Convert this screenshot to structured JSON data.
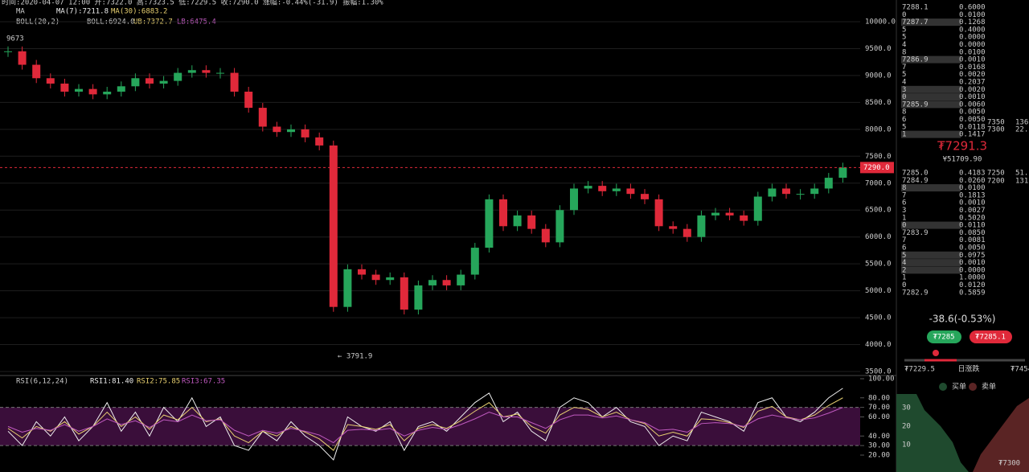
{
  "header": {
    "ohlc": "时间:2020-04-07 12:00  开:7322.0  高:7323.5  低:7229.5  收:7290.0  涨幅:-0.44%(-31.9)  振幅:1.30%",
    "ma": [
      "MA",
      "MA(7):7211.8",
      "MA(30):6883.2"
    ],
    "boll": [
      "BOLL(20,2)",
      "BOLL:6924.0",
      "UB:7372.7",
      "LB:6475.4"
    ]
  },
  "chart_data": [
    {
      "type": "candlestick",
      "closes": [
        9450,
        9200,
        8950,
        8850,
        8700,
        8750,
        8650,
        8700,
        8800,
        8950,
        8850,
        8900,
        9050,
        9100,
        9050,
        9050,
        8700,
        8400,
        8050,
        7950,
        8000,
        7850,
        7700,
        4700,
        5400,
        5300,
        5200,
        5250,
        4650,
        5100,
        5200,
        5100,
        5300,
        5800,
        6700,
        6200,
        6400,
        6150,
        5900,
        6500,
        6900,
        6950,
        6850,
        6900,
        6800,
        6700,
        6200,
        6150,
        6000,
        6400,
        6450,
        6400,
        6300,
        6750,
        6900,
        6800,
        6800,
        6900,
        7100,
        7290
      ],
      "ylim": [
        3500,
        10000
      ],
      "yticks": [
        {
          "value": 10000,
          "label": "10000.0"
        },
        {
          "value": 9500,
          "label": "9500.0"
        },
        {
          "value": 9000,
          "label": "9000.0"
        },
        {
          "value": 8500,
          "label": "8500.0"
        },
        {
          "value": 8000,
          "label": "8000.0"
        },
        {
          "value": 7500,
          "label": "7500.0"
        },
        {
          "value": 7000,
          "label": "7000.0"
        },
        {
          "value": 6500,
          "label": "6500.0"
        },
        {
          "value": 6000,
          "label": "6000.0"
        },
        {
          "value": 5500,
          "label": "5500.0"
        },
        {
          "value": 5000,
          "label": "5000.0"
        },
        {
          "value": 4500,
          "label": "4500.0"
        },
        {
          "value": 4000,
          "label": "4000.0"
        },
        {
          "value": 3500,
          "label": "3500.0"
        }
      ],
      "last_price": {
        "value": 7290,
        "label": "7290.0"
      },
      "high_label": "9673",
      "low_label": "← 3791.9",
      "up_color": "#26a65b",
      "down_color": "#e0293a"
    },
    {
      "type": "line",
      "legend": [
        "RSI(6,12,24)",
        "RSI1:81.40",
        "RSI2:75.85",
        "RSI3:67.35"
      ],
      "series": [
        {
          "name": "RSI1",
          "color": "#f0f0f0",
          "values": [
            45,
            30,
            55,
            40,
            60,
            35,
            50,
            75,
            45,
            65,
            40,
            70,
            55,
            80,
            50,
            60,
            30,
            25,
            45,
            35,
            55,
            40,
            30,
            15,
            60,
            50,
            45,
            55,
            25,
            50,
            55,
            45,
            60,
            75,
            85,
            55,
            65,
            45,
            35,
            70,
            80,
            75,
            60,
            70,
            55,
            50,
            30,
            40,
            35,
            65,
            60,
            55,
            45,
            75,
            80,
            60,
            55,
            65,
            80,
            90
          ]
        },
        {
          "name": "RSI2",
          "color": "#e8d070",
          "values": [
            48,
            38,
            50,
            45,
            55,
            42,
            50,
            65,
            50,
            60,
            47,
            62,
            57,
            70,
            55,
            58,
            40,
            33,
            45,
            40,
            50,
            44,
            37,
            25,
            52,
            50,
            47,
            52,
            35,
            48,
            52,
            48,
            56,
            66,
            75,
            60,
            63,
            50,
            43,
            62,
            70,
            68,
            60,
            65,
            57,
            53,
            40,
            44,
            40,
            58,
            57,
            54,
            49,
            66,
            71,
            60,
            57,
            62,
            72,
            80
          ]
        },
        {
          "name": "RSI3",
          "color": "#c05ac0",
          "values": [
            50,
            44,
            48,
            46,
            52,
            45,
            50,
            58,
            52,
            56,
            49,
            57,
            55,
            62,
            56,
            57,
            46,
            40,
            46,
            43,
            48,
            45,
            41,
            33,
            46,
            47,
            46,
            48,
            40,
            46,
            49,
            47,
            52,
            58,
            65,
            60,
            60,
            54,
            48,
            57,
            62,
            62,
            59,
            61,
            57,
            54,
            46,
            47,
            44,
            53,
            54,
            53,
            50,
            58,
            62,
            59,
            57,
            59,
            64,
            70
          ]
        }
      ],
      "ylim": [
        15,
        100
      ],
      "yticks": [
        {
          "value": 100,
          "label": "100.00"
        },
        {
          "value": 80,
          "label": "80.00"
        },
        {
          "value": 70,
          "label": "70.00"
        },
        {
          "value": 60,
          "label": "60.00"
        },
        {
          "value": 40,
          "label": "40.00"
        },
        {
          "value": 30,
          "label": "30.00"
        },
        {
          "value": 20,
          "label": "20.00"
        }
      ],
      "band": [
        30,
        70
      ]
    }
  ],
  "orderbook": {
    "asks": [
      [
        "7288.1",
        "0.6000"
      ],
      [
        "0",
        "0.0100"
      ],
      [
        "7287.7",
        "0.1268"
      ],
      [
        "5",
        "0.4000"
      ],
      [
        "5",
        "0.0000"
      ],
      [
        "4",
        "0.0000"
      ],
      [
        "8",
        "0.0100"
      ],
      [
        "7286.9",
        "0.0010"
      ],
      [
        "7",
        "0.0168"
      ],
      [
        "5",
        "0.0020"
      ],
      [
        "4",
        "0.2037"
      ],
      [
        "3",
        "0.0020"
      ],
      [
        "0",
        "0.0010"
      ],
      [
        "7285.9",
        "0.0060"
      ],
      [
        "8",
        "0.0050"
      ],
      [
        "6",
        "0.0050"
      ],
      [
        "5",
        "0.0118"
      ],
      [
        "1",
        "0.1417"
      ]
    ],
    "bids": [
      [
        "7285.0",
        "0.4183"
      ],
      [
        "7284.9",
        "0.0260"
      ],
      [
        "8",
        "0.0100"
      ],
      [
        "7",
        "0.1813"
      ],
      [
        "6",
        "0.0010"
      ],
      [
        "3",
        "0.0027"
      ],
      [
        "1",
        "0.5020"
      ],
      [
        "0",
        "0.0110"
      ],
      [
        "7283.9",
        "0.0850"
      ],
      [
        "7",
        "0.0081"
      ],
      [
        "6",
        "0.0050"
      ],
      [
        "5",
        "0.0975"
      ],
      [
        "4",
        "0.0010"
      ],
      [
        "2",
        "0.0000"
      ],
      [
        "1",
        "1.0000"
      ],
      [
        "0",
        "0.0120"
      ],
      [
        "7282.9",
        "0.5859"
      ]
    ],
    "side": [
      [
        "7350",
        "136"
      ],
      [
        "7300",
        "22."
      ],
      [
        "7250",
        "51."
      ],
      [
        "7200",
        "131"
      ]
    ],
    "price": "₮7291.3",
    "cny": "¥51709.90",
    "change": "-38.6(-0.53%)",
    "buy_btn": "₮7285",
    "sell_btn": "₮7285.1",
    "range_low": "₮7229.5",
    "range_mid": "日涨跌",
    "range_high": "₮7454",
    "legend_buy": "买单",
    "legend_sell": "卖单",
    "depth_ticks": [
      "30",
      "20",
      "10"
    ],
    "depth_x": "₮7300"
  }
}
